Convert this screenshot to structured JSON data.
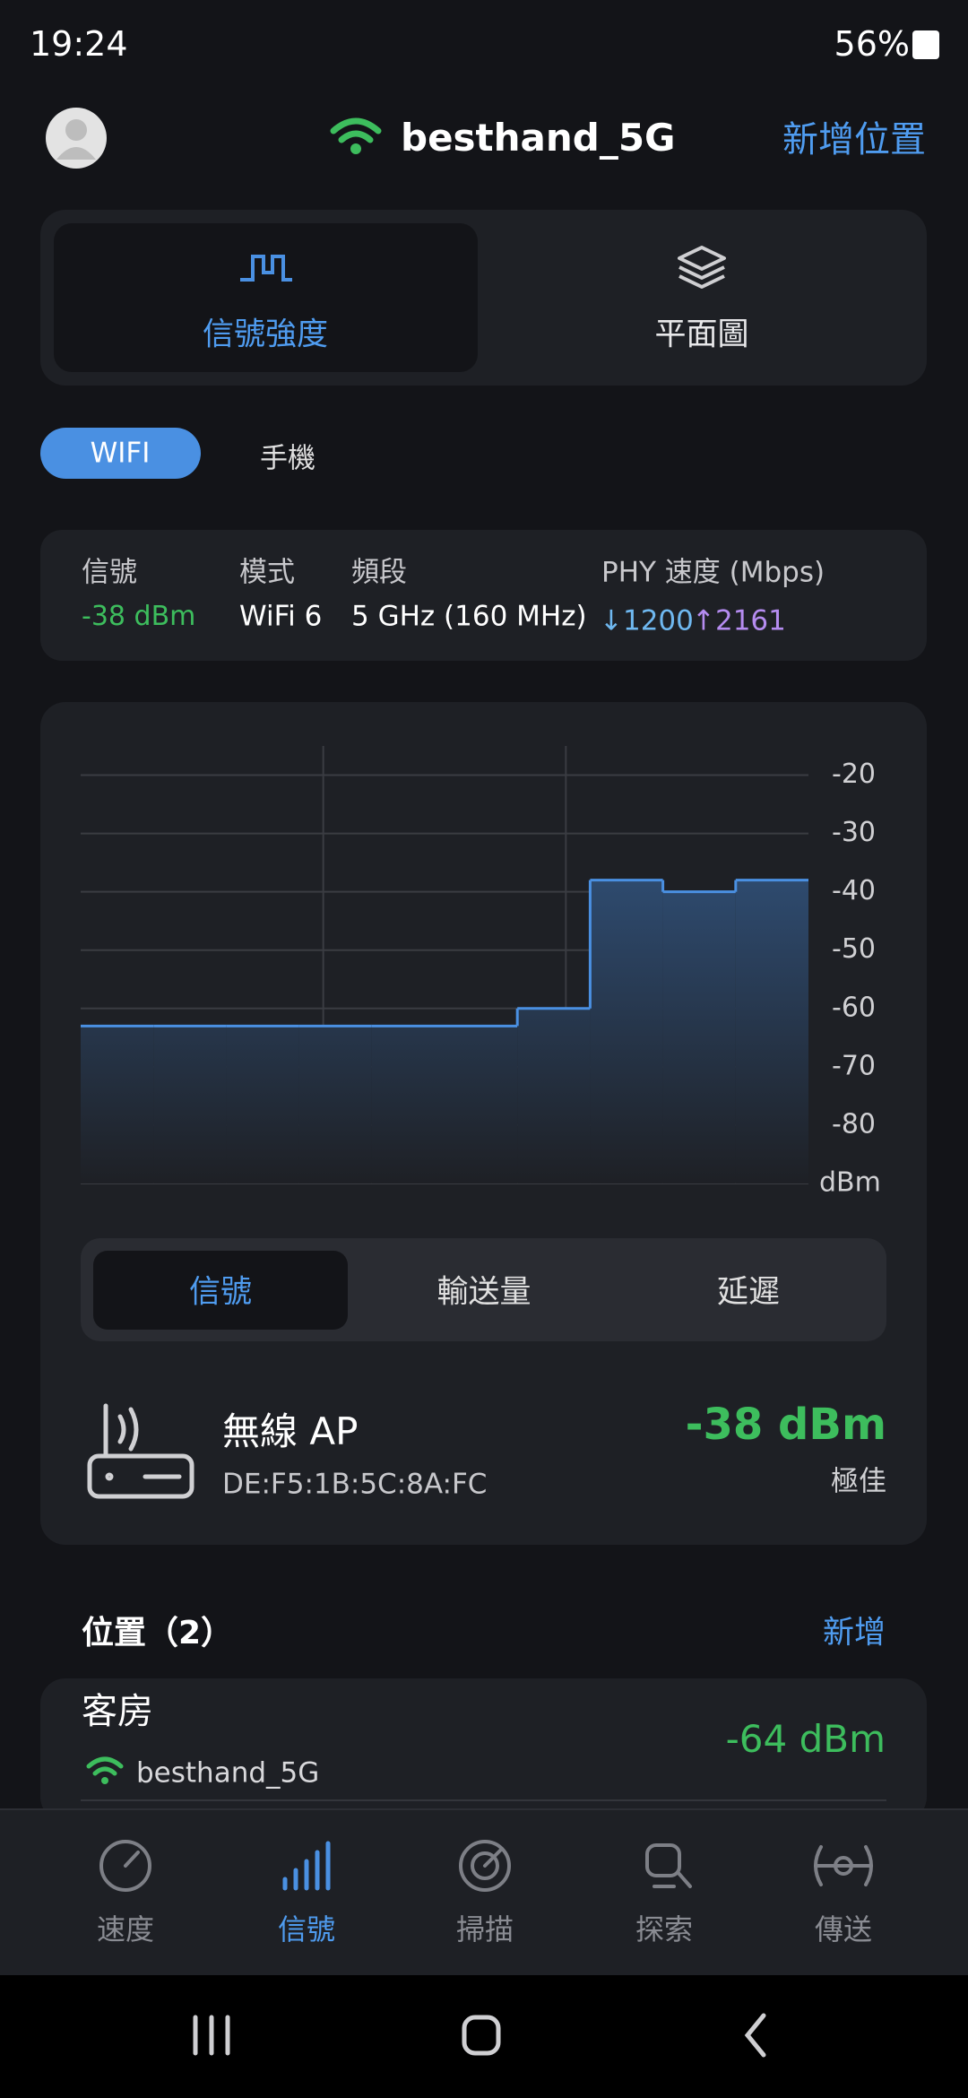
{
  "status_bar": {
    "time": "19:24",
    "battery": "56%"
  },
  "header": {
    "network": "besthand_5G",
    "add_location": "新增位置"
  },
  "view_tabs": [
    "信號強度",
    "平面圖"
  ],
  "mode_tabs": [
    "WIFI",
    "手機"
  ],
  "info": {
    "labels": [
      "信號",
      "模式",
      "頻段",
      "PHY 速度 (Mbps)"
    ],
    "signal": "-38 dBm",
    "mode": "WiFi 6",
    "band": "5 GHz (160 MHz)",
    "down": "↓1200",
    "up": "↑2161"
  },
  "chart_data": {
    "type": "line",
    "step": true,
    "area": true,
    "color": "#4a90e2",
    "values": [
      -63,
      -63,
      -63,
      -63,
      -63,
      -63,
      -60,
      -38,
      -40,
      -38
    ],
    "ylim": [
      -90,
      -15
    ],
    "yticks": [
      -20,
      -30,
      -40,
      -50,
      -60,
      -70,
      -80
    ],
    "y_unit": "dBm",
    "grid": true
  },
  "metric_tabs": [
    "信號",
    "輸送量",
    "延遲"
  ],
  "access_point": {
    "name": "無線 AP",
    "mac": "DE:F5:1B:5C:8A:FC",
    "signal": "-38 dBm",
    "quality": "極佳"
  },
  "locations": {
    "title": "位置（2）",
    "add": "新增",
    "items": [
      {
        "name": "客房",
        "network": "besthand_5G",
        "signal": "-64 dBm"
      }
    ]
  },
  "nav": [
    "速度",
    "信號",
    "掃描",
    "探索",
    "傳送"
  ]
}
